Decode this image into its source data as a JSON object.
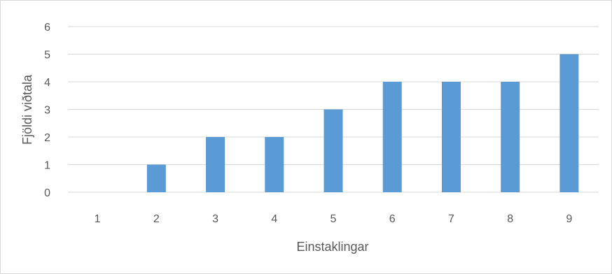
{
  "chart_data": {
    "type": "bar",
    "categories": [
      "1",
      "2",
      "3",
      "4",
      "5",
      "6",
      "7",
      "8",
      "9"
    ],
    "series": [
      {
        "values": [
          0,
          1,
          2,
          2,
          3,
          4,
          4,
          4,
          5
        ]
      }
    ],
    "xlabel": "Einstaklingar",
    "ylabel": "Fjöldi viðtala",
    "ylim": [
      0,
      6
    ],
    "yticks": [
      "0",
      "1",
      "2",
      "3",
      "4",
      "5",
      "6"
    ],
    "grid": true,
    "legend": "none",
    "bar_color": "#5b9bd5",
    "grid_color": "#d9d9d9"
  }
}
